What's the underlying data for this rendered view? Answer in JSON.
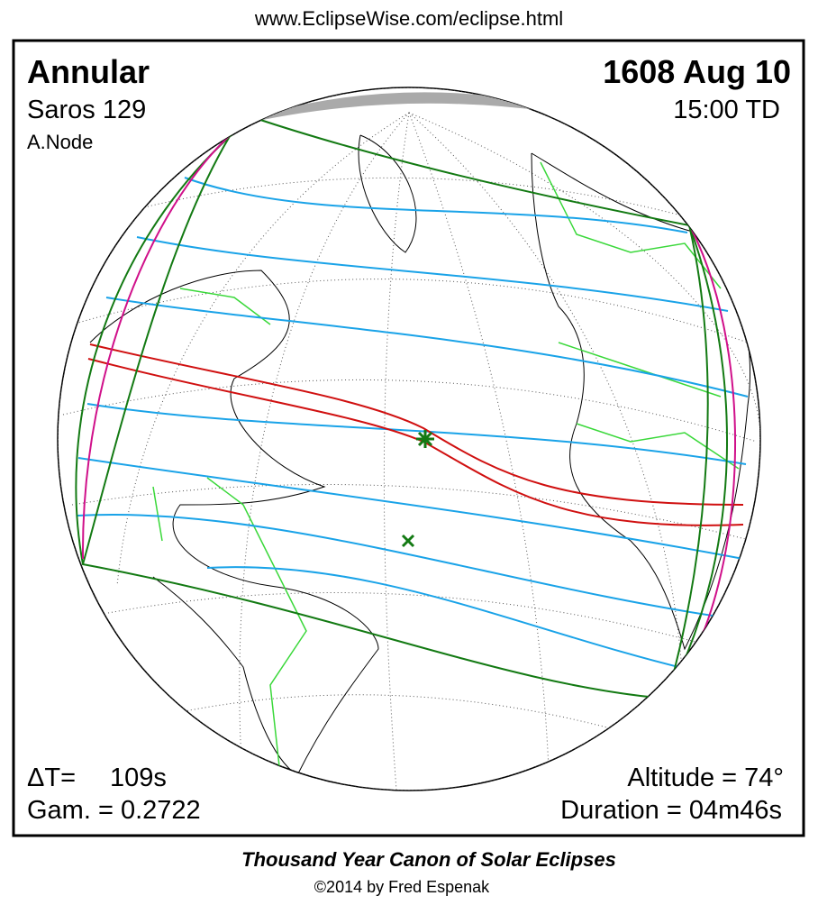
{
  "header": {
    "url": "www.EclipseWise.com/eclipse.html"
  },
  "panel": {
    "eclipse_type": "Annular",
    "saros": "Saros 129",
    "node": "A.Node",
    "date": "1608 Aug 10",
    "time": "15:00 TD",
    "delta_t_label": "ΔT=",
    "delta_t_value": "109s",
    "gamma": "Gam. = 0.2722",
    "altitude": "Altitude = 74°",
    "duration": "Duration = 04m46s"
  },
  "footer": {
    "title": "Thousand Year Canon of Solar Eclipses",
    "copyright": "©2014 by Fred Espenak"
  }
}
